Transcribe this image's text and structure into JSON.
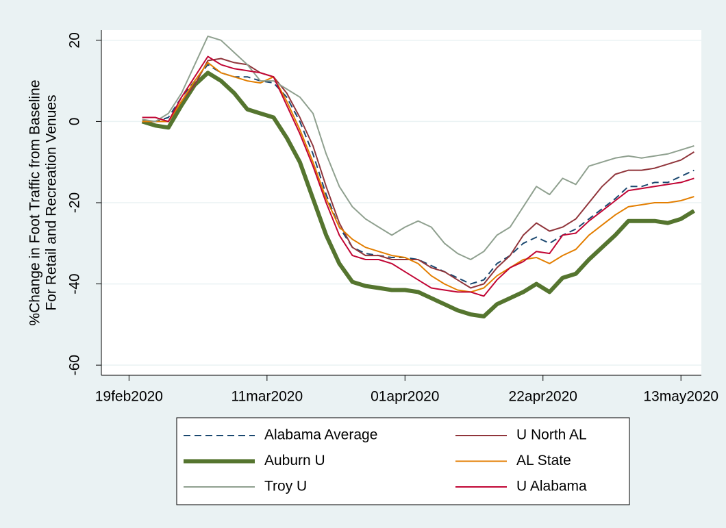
{
  "chart_data": {
    "type": "line",
    "ylabel": [
      "%Change in Foot Traffic from Baseline",
      "For Retail and Recreation Venues"
    ],
    "x": [
      "2020-02-21",
      "2020-02-23",
      "2020-02-25",
      "2020-02-27",
      "2020-02-29",
      "2020-03-02",
      "2020-03-04",
      "2020-03-06",
      "2020-03-08",
      "2020-03-10",
      "2020-03-12",
      "2020-03-14",
      "2020-03-16",
      "2020-03-18",
      "2020-03-20",
      "2020-03-22",
      "2020-03-24",
      "2020-03-26",
      "2020-03-28",
      "2020-03-30",
      "2020-04-01",
      "2020-04-03",
      "2020-04-05",
      "2020-04-07",
      "2020-04-09",
      "2020-04-11",
      "2020-04-13",
      "2020-04-15",
      "2020-04-17",
      "2020-04-19",
      "2020-04-21",
      "2020-04-23",
      "2020-04-25",
      "2020-04-27",
      "2020-04-29",
      "2020-05-01",
      "2020-05-03",
      "2020-05-05",
      "2020-05-07",
      "2020-05-09",
      "2020-05-11",
      "2020-05-13",
      "2020-05-15"
    ],
    "xlim": [
      "2020-02-15",
      "2020-05-16"
    ],
    "xticks": [
      {
        "value": "2020-02-19",
        "label": "19feb2020"
      },
      {
        "value": "2020-03-11",
        "label": "11mar2020"
      },
      {
        "value": "2020-04-01",
        "label": "01apr2020"
      },
      {
        "value": "2020-04-22",
        "label": "22apr2020"
      },
      {
        "value": "2020-05-13",
        "label": "13may2020"
      }
    ],
    "ylim": [
      -62.5,
      22.5
    ],
    "yticks": [
      20,
      0,
      -20,
      -40,
      -60
    ],
    "grid": true,
    "series": [
      {
        "name": "Alabama Average",
        "color": "#1a476f",
        "dash": true,
        "width": 2,
        "values": [
          0,
          0,
          1,
          6,
          10,
          14,
          12,
          11,
          11,
          10,
          9.5,
          6,
          0,
          -8,
          -18,
          -26,
          -31,
          -32.5,
          -33,
          -33.5,
          -33.5,
          -34,
          -35.5,
          -37,
          -38.5,
          -40,
          -39,
          -35,
          -33,
          -30,
          -28.5,
          -30,
          -28,
          -26.5,
          -24,
          -21.5,
          -19,
          -16,
          -16,
          -15,
          -15,
          -13.5,
          -12
        ]
      },
      {
        "name": "U North AL",
        "color": "#90353b",
        "dash": false,
        "width": 2,
        "values": [
          0,
          0,
          0,
          5,
          9,
          15,
          15.5,
          14.5,
          14,
          12,
          11,
          7,
          1,
          -6,
          -16,
          -25,
          -31,
          -33,
          -33,
          -34,
          -34,
          -34,
          -36,
          -37,
          -39,
          -41,
          -40,
          -36,
          -33,
          -28,
          -25,
          -27,
          -26,
          -24,
          -20,
          -16,
          -13,
          -12,
          -12,
          -11.5,
          -10.5,
          -9.5,
          -7.5
        ]
      },
      {
        "name": "Auburn U",
        "color": "#55752f",
        "dash": false,
        "width": 6,
        "values": [
          0,
          -1,
          -1.5,
          4,
          9,
          12,
          10,
          7,
          3,
          2,
          1,
          -4,
          -10,
          -19,
          -28,
          -35,
          -39.5,
          -40.5,
          -41,
          -41.5,
          -41.5,
          -42,
          -43.5,
          -45,
          -46.5,
          -47.5,
          -48,
          -45,
          -43.5,
          -42,
          -40,
          -42,
          -38.5,
          -37.5,
          -34,
          -31,
          -28,
          -24.5,
          -24.5,
          -24.5,
          -25,
          -24,
          -22
        ]
      },
      {
        "name": "AL State",
        "color": "#e37e00",
        "dash": false,
        "width": 2,
        "values": [
          0,
          0,
          0,
          5,
          10,
          14.5,
          12,
          11,
          10,
          9.5,
          11,
          5,
          -2,
          -10,
          -19,
          -26,
          -29,
          -31,
          -32,
          -33,
          -33.5,
          -35,
          -38,
          -40,
          -41.5,
          -42,
          -41,
          -38,
          -36,
          -34,
          -33.5,
          -35,
          -33,
          -31.5,
          -28,
          -25.5,
          -23,
          -21,
          -20.5,
          -20,
          -20,
          -19.5,
          -18.5
        ]
      },
      {
        "name": "Troy U",
        "color": "#8fa08f",
        "dash": false,
        "width": 2,
        "values": [
          0.5,
          0,
          2,
          7,
          14,
          21,
          20,
          17,
          14,
          10,
          10,
          8,
          6,
          2,
          -8,
          -16,
          -21,
          -24,
          -26,
          -28,
          -26,
          -24.5,
          -26,
          -30,
          -32.5,
          -34,
          -32,
          -28,
          -26,
          -21,
          -16,
          -18,
          -14,
          -15.5,
          -11,
          -10,
          -9,
          -8.5,
          -9,
          -8.5,
          -8,
          -7,
          -6
        ]
      },
      {
        "name": "U Alabama",
        "color": "#c10534",
        "dash": false,
        "width": 2,
        "values": [
          1,
          1,
          0,
          6,
          11,
          16,
          14,
          13,
          12.5,
          12,
          11,
          4,
          -3,
          -11,
          -20,
          -28,
          -33,
          -34,
          -34,
          -35,
          -37,
          -39,
          -41,
          -41.5,
          -42,
          -42,
          -43,
          -39,
          -36,
          -34.5,
          -32,
          -32.5,
          -28,
          -27.5,
          -24.5,
          -22,
          -19.5,
          -17,
          -16.5,
          -16,
          -15.5,
          -15,
          -14
        ]
      }
    ]
  }
}
